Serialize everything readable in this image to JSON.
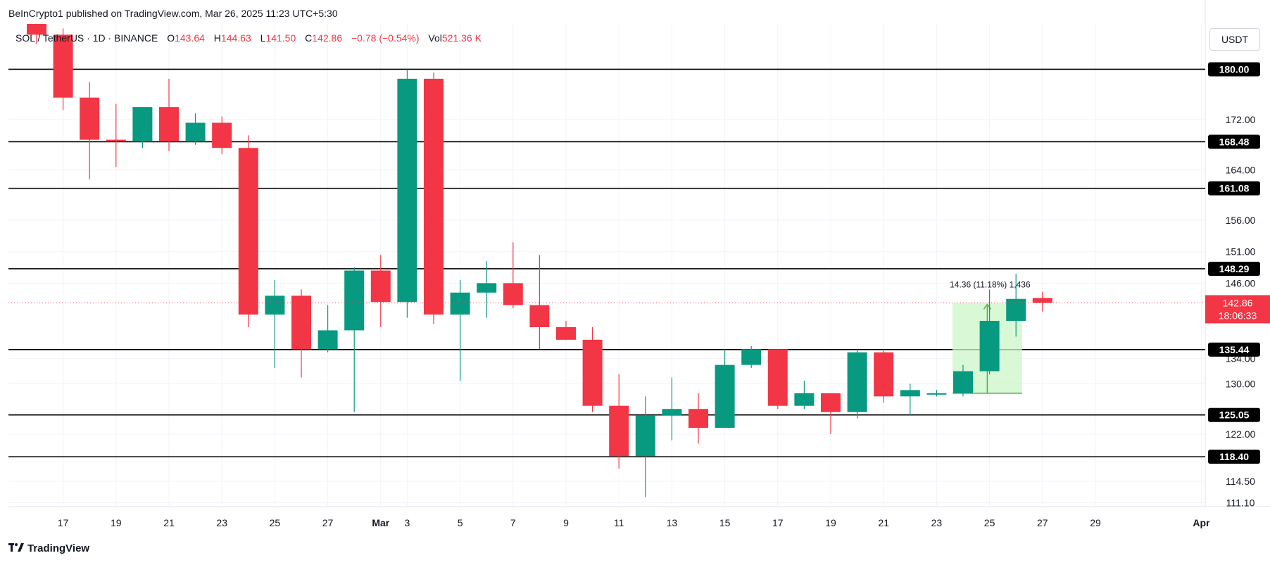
{
  "header": {
    "publisher": "BeInCrypto1 published on TradingView.com, Mar 26, 2025 11:23 UTC+5:30"
  },
  "legend": {
    "symbol": "SOL / TetherUS · 1D · BINANCE",
    "o_label": "O",
    "o_value": "143.64",
    "h_label": "H",
    "h_value": "144.63",
    "l_label": "L",
    "l_value": "141.50",
    "c_label": "C",
    "c_value": "142.86",
    "change": "−0.78 (−0.54%)",
    "vol_label": "Vol",
    "vol_value": "521.36 K"
  },
  "currency_button": "USDT",
  "footer": {
    "brand": "TradingView"
  },
  "colors": {
    "up": "#089981",
    "down": "#f23645",
    "level_line": "#000000",
    "measure_fill": "#ccf5c8",
    "measure_stroke": "#4caf50",
    "last_price_bg": "#f23645"
  },
  "chart_data": {
    "type": "candlestick",
    "symbol": "SOL/USDT",
    "interval": "1D",
    "ylim": [
      110,
      185
    ],
    "x_tick_labels": [
      "17",
      "19",
      "21",
      "23",
      "25",
      "27",
      "Mar",
      "3",
      "5",
      "7",
      "9",
      "11",
      "13",
      "15",
      "17",
      "19",
      "21",
      "23",
      "25",
      "27",
      "29",
      "Apr"
    ],
    "y_tick_labels": [
      "172.00",
      "164.00",
      "156.00",
      "151.00",
      "146.00",
      "134.00",
      "130.00",
      "122.00",
      "114.50",
      "111.10"
    ],
    "y_tick_values": [
      172,
      164,
      156,
      151,
      146,
      134,
      130,
      122,
      114.5,
      111.1
    ],
    "levels": [
      {
        "value": 180.0,
        "label": "180.00"
      },
      {
        "value": 168.48,
        "label": "168.48"
      },
      {
        "value": 161.08,
        "label": "161.08"
      },
      {
        "value": 148.29,
        "label": "148.29"
      },
      {
        "value": 135.44,
        "label": "135.44"
      },
      {
        "value": 125.05,
        "label": "125.05"
      },
      {
        "value": 118.4,
        "label": "118.40"
      }
    ],
    "last_price": {
      "value": 142.86,
      "label": "142.86",
      "countdown": "18:06:33"
    },
    "measure": {
      "label": "14.36 (11.18%) 1,436",
      "from_date": "Mar 23",
      "to_date": "Mar 26",
      "from_price": 128.5,
      "to_price": 142.86
    },
    "candles": [
      {
        "date": "Feb 16",
        "o": 187.5,
        "h": 190.0,
        "l": 184.0,
        "c": 185.5
      },
      {
        "date": "Feb 17",
        "o": 185.5,
        "h": 186.5,
        "l": 173.5,
        "c": 175.5
      },
      {
        "date": "Feb 18",
        "o": 175.5,
        "h": 178.0,
        "l": 162.5,
        "c": 168.8
      },
      {
        "date": "Feb 19",
        "o": 168.8,
        "h": 174.5,
        "l": 164.5,
        "c": 168.5
      },
      {
        "date": "Feb 20",
        "o": 168.5,
        "h": 174.0,
        "l": 167.5,
        "c": 174.0
      },
      {
        "date": "Feb 21",
        "o": 174.0,
        "h": 178.5,
        "l": 167.0,
        "c": 168.5
      },
      {
        "date": "Feb 22",
        "o": 168.5,
        "h": 173.0,
        "l": 168.0,
        "c": 171.5
      },
      {
        "date": "Feb 23",
        "o": 171.5,
        "h": 172.5,
        "l": 166.5,
        "c": 167.5
      },
      {
        "date": "Feb 24",
        "o": 167.5,
        "h": 169.5,
        "l": 139.0,
        "c": 141.0
      },
      {
        "date": "Feb 25",
        "o": 141.0,
        "h": 146.5,
        "l": 132.5,
        "c": 144.0
      },
      {
        "date": "Feb 26",
        "o": 144.0,
        "h": 145.0,
        "l": 131.0,
        "c": 135.5
      },
      {
        "date": "Feb 27",
        "o": 135.5,
        "h": 142.5,
        "l": 135.0,
        "c": 138.5
      },
      {
        "date": "Feb 28",
        "o": 138.5,
        "h": 148.5,
        "l": 125.5,
        "c": 148.0
      },
      {
        "date": "Mar 1",
        "o": 148.0,
        "h": 150.5,
        "l": 139.0,
        "c": 143.0
      },
      {
        "date": "Mar 2",
        "o": 143.0,
        "h": 180.0,
        "l": 140.5,
        "c": 178.5
      },
      {
        "date": "Mar 3",
        "o": 178.5,
        "h": 179.5,
        "l": 139.5,
        "c": 141.0
      },
      {
        "date": "Mar 4",
        "o": 141.0,
        "h": 146.5,
        "l": 130.5,
        "c": 144.5
      },
      {
        "date": "Mar 5",
        "o": 144.5,
        "h": 149.5,
        "l": 140.5,
        "c": 146.0
      },
      {
        "date": "Mar 6",
        "o": 146.0,
        "h": 152.5,
        "l": 142.0,
        "c": 142.5
      },
      {
        "date": "Mar 7",
        "o": 142.5,
        "h": 150.5,
        "l": 135.5,
        "c": 139.0
      },
      {
        "date": "Mar 8",
        "o": 139.0,
        "h": 140.0,
        "l": 137.0,
        "c": 137.0
      },
      {
        "date": "Mar 9",
        "o": 137.0,
        "h": 139.0,
        "l": 125.5,
        "c": 126.5
      },
      {
        "date": "Mar 10",
        "o": 126.5,
        "h": 131.5,
        "l": 116.5,
        "c": 118.5
      },
      {
        "date": "Mar 11",
        "o": 118.5,
        "h": 128.0,
        "l": 112.0,
        "c": 125.0
      },
      {
        "date": "Mar 12",
        "o": 125.0,
        "h": 131.0,
        "l": 121.0,
        "c": 126.0
      },
      {
        "date": "Mar 13",
        "o": 126.0,
        "h": 128.5,
        "l": 120.5,
        "c": 123.0
      },
      {
        "date": "Mar 14",
        "o": 123.0,
        "h": 135.5,
        "l": 123.0,
        "c": 133.0
      },
      {
        "date": "Mar 15",
        "o": 133.0,
        "h": 136.0,
        "l": 132.5,
        "c": 135.5
      },
      {
        "date": "Mar 16",
        "o": 135.5,
        "h": 135.5,
        "l": 126.0,
        "c": 126.5
      },
      {
        "date": "Mar 17",
        "o": 126.5,
        "h": 130.5,
        "l": 126.0,
        "c": 128.5
      },
      {
        "date": "Mar 18",
        "o": 128.5,
        "h": 128.5,
        "l": 122.0,
        "c": 125.5
      },
      {
        "date": "Mar 19",
        "o": 125.5,
        "h": 135.5,
        "l": 124.5,
        "c": 135.0
      },
      {
        "date": "Mar 20",
        "o": 135.0,
        "h": 135.5,
        "l": 127.0,
        "c": 128.0
      },
      {
        "date": "Mar 21",
        "o": 128.0,
        "h": 130.0,
        "l": 125.0,
        "c": 129.0
      },
      {
        "date": "Mar 22",
        "o": 128.5,
        "h": 129.0,
        "l": 128.0,
        "c": 128.5
      },
      {
        "date": "Mar 23",
        "o": 128.5,
        "h": 133.0,
        "l": 128.0,
        "c": 132.0
      },
      {
        "date": "Mar 24",
        "o": 132.0,
        "h": 145.0,
        "l": 131.5,
        "c": 140.0
      },
      {
        "date": "Mar 25",
        "o": 140.0,
        "h": 147.5,
        "l": 137.5,
        "c": 143.5
      },
      {
        "date": "Mar 26",
        "o": 143.64,
        "h": 144.63,
        "l": 141.5,
        "c": 142.86
      }
    ]
  }
}
